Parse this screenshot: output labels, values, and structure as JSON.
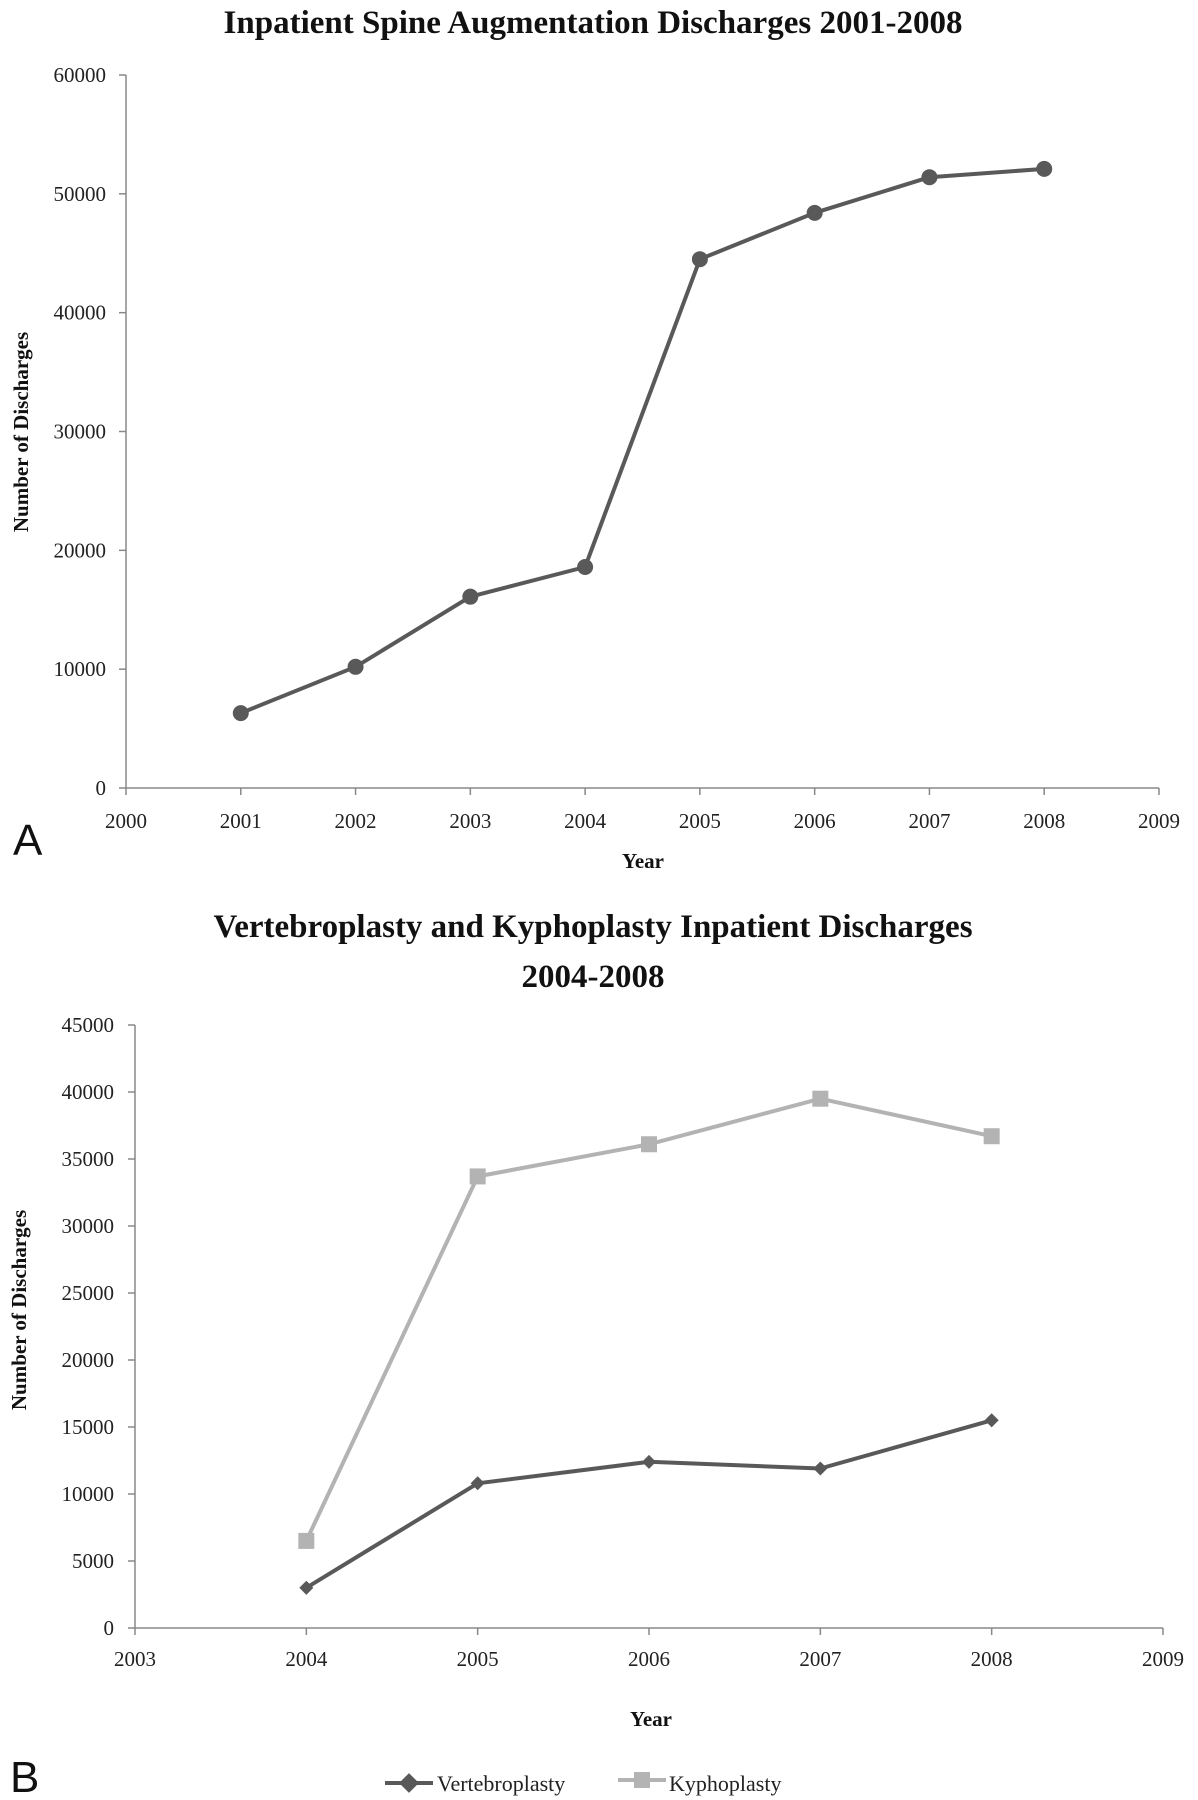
{
  "chart_data": [
    {
      "panel": "A",
      "type": "line",
      "title": "Inpatient Spine Augmentation Discharges 2001-2008",
      "xlabel": "Year",
      "ylabel": "Number of Discharges",
      "xlim": [
        2000,
        2009
      ],
      "ylim": [
        0,
        60000
      ],
      "x_ticks": [
        "2000",
        "2001",
        "2002",
        "2003",
        "2004",
        "2005",
        "2006",
        "2007",
        "2008",
        "2009"
      ],
      "y_ticks": [
        "0",
        "10000",
        "20000",
        "30000",
        "40000",
        "50000",
        "60000"
      ],
      "grid": false,
      "legend": "none",
      "series": [
        {
          "marker": "circle",
          "color": "#595959",
          "x": [
            2001,
            2002,
            2003,
            2004,
            2005,
            2006,
            2007,
            2008
          ],
          "y": [
            6300,
            10200,
            16100,
            18600,
            44500,
            48400,
            51400,
            52100
          ]
        }
      ]
    },
    {
      "panel": "B",
      "type": "line",
      "title_lines": [
        "Vertebroplasty and Kyphoplasty Inpatient Discharges",
        "2004-2008"
      ],
      "xlabel": "Year",
      "ylabel": "Number of Discharges",
      "xlim": [
        2003,
        2009
      ],
      "ylim": [
        0,
        45000
      ],
      "x_ticks": [
        "2003",
        "2004",
        "2005",
        "2006",
        "2007",
        "2008",
        "2009"
      ],
      "y_ticks": [
        "0",
        "5000",
        "10000",
        "15000",
        "20000",
        "25000",
        "30000",
        "35000",
        "40000",
        "45000"
      ],
      "grid": false,
      "legend": "bottom",
      "series": [
        {
          "name": "Vertebroplasty",
          "marker": "diamond",
          "color": "#595959",
          "x": [
            2004,
            2005,
            2006,
            2007,
            2008
          ],
          "y": [
            3000,
            10800,
            12400,
            11900,
            15500
          ]
        },
        {
          "name": "Kyphoplasty",
          "marker": "square",
          "color": "#b3b3b3",
          "x": [
            2004,
            2005,
            2006,
            2007,
            2008
          ],
          "y": [
            6500,
            33700,
            36100,
            39500,
            36700
          ]
        }
      ]
    }
  ]
}
